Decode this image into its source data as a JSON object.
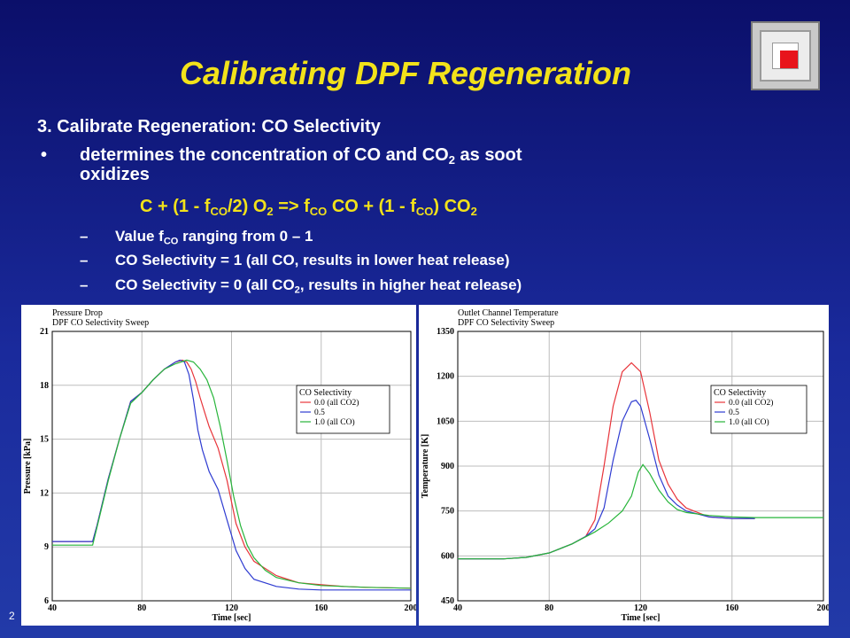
{
  "slide": {
    "title": "Calibrating DPF Regeneration",
    "line1": "3. Calibrate Regeneration: CO Selectivity",
    "bullet": "•",
    "bullet_text_a": "determines the concentration of CO and CO",
    "bullet_text_b": " as soot",
    "bullet_text_c": "oxidizes",
    "eq_parts": [
      "C + (1 - f",
      "CO",
      "/2) O",
      "2",
      " => f",
      "CO",
      " CO + (1 - f",
      "CO",
      ") CO",
      "2"
    ],
    "dash": "–",
    "sub1_a": "Value  f",
    "sub1_sub": "CO",
    "sub1_b": " ranging from 0 – 1",
    "sub2": "CO Selectivity = 1 (all CO, results in lower heat release)",
    "sub3_a": "CO Selectivity = 0 (all CO",
    "sub3_sub": "2",
    "sub3_b": ", results in higher heat release)",
    "page_number": "2",
    "logo": "square-logo-icon",
    "colors": {
      "title": "#f2e21a",
      "text": "#ffffff",
      "background": "#1a2a9c"
    }
  },
  "chart_data": [
    {
      "type": "line",
      "title": "Pressure Drop",
      "subtitle": "DPF CO Selectivity Sweep",
      "xlabel": "Time [sec]",
      "ylabel": "Pressure [kPa]",
      "xlim": [
        40,
        200
      ],
      "ylim": [
        6,
        21
      ],
      "xticks": [
        40,
        80,
        120,
        160,
        200
      ],
      "xtick_labels": [
        "40",
        "80",
        "120",
        "160",
        "200"
      ],
      "yticks": [
        6,
        9,
        12,
        15,
        18,
        21
      ],
      "ytick_labels": [
        "6",
        "9",
        "12",
        "15",
        "18",
        "21"
      ],
      "grid": true,
      "legend": {
        "title": "CO Selectivity",
        "position": "right"
      },
      "series": [
        {
          "name": "0.0 (all CO2)",
          "color": "#e8343a",
          "x": [
            40,
            58,
            60,
            65,
            70,
            75,
            80,
            85,
            90,
            95,
            98,
            100,
            102,
            104,
            106,
            108,
            110,
            114,
            118,
            122,
            126,
            130,
            140,
            150,
            160,
            170,
            180,
            200
          ],
          "y": [
            9.3,
            9.3,
            10.2,
            12.8,
            15.0,
            17.1,
            17.6,
            18.3,
            18.9,
            19.3,
            19.4,
            19.3,
            18.9,
            18.2,
            17.3,
            16.5,
            15.7,
            14.5,
            12.7,
            10.3,
            9.0,
            8.2,
            7.4,
            7.0,
            6.9,
            6.8,
            6.75,
            6.7
          ]
        },
        {
          "name": "0.5",
          "color": "#2e3bd1",
          "x": [
            40,
            58,
            60,
            65,
            70,
            75,
            80,
            85,
            90,
            95,
            97,
            99,
            101,
            103,
            105,
            107,
            110,
            114,
            118,
            122,
            126,
            130,
            140,
            150,
            160,
            170,
            180,
            200
          ],
          "y": [
            9.3,
            9.3,
            10.2,
            12.8,
            15.0,
            17.1,
            17.6,
            18.3,
            18.9,
            19.3,
            19.4,
            19.3,
            18.6,
            17.2,
            15.5,
            14.4,
            13.2,
            12.2,
            10.5,
            8.8,
            7.8,
            7.2,
            6.8,
            6.65,
            6.6,
            6.6,
            6.6,
            6.6
          ]
        },
        {
          "name": "1.0 (all CO)",
          "color": "#27b53a",
          "x": [
            40,
            58,
            60,
            65,
            70,
            75,
            80,
            85,
            90,
            95,
            100,
            103,
            106,
            109,
            112,
            115,
            118,
            121,
            124,
            127,
            130,
            135,
            140,
            150,
            160,
            170,
            180,
            200
          ],
          "y": [
            9.1,
            9.1,
            10.1,
            12.7,
            15.0,
            17.0,
            17.6,
            18.3,
            18.9,
            19.2,
            19.4,
            19.3,
            18.9,
            18.3,
            17.3,
            15.7,
            13.8,
            11.8,
            10.2,
            9.1,
            8.4,
            7.7,
            7.3,
            7.0,
            6.85,
            6.8,
            6.75,
            6.7
          ]
        }
      ]
    },
    {
      "type": "line",
      "title": "Outlet Channel Temperature",
      "subtitle": "DPF CO Selectivity Sweep",
      "xlabel": "Time [sec]",
      "ylabel": "Temperature [K]",
      "xlim": [
        40,
        200
      ],
      "ylim": [
        450,
        1350
      ],
      "xticks": [
        40,
        80,
        120,
        160,
        200
      ],
      "xtick_labels": [
        "40",
        "80",
        "120",
        "160",
        "200"
      ],
      "yticks": [
        450,
        600,
        750,
        900,
        1050,
        1200,
        1350
      ],
      "ytick_labels": [
        "450",
        "600",
        "750",
        "900",
        "1050",
        "1200",
        "1350"
      ],
      "grid": true,
      "legend": {
        "title": "CO Selectivity",
        "position": "right"
      },
      "series": [
        {
          "name": "0.0 (all CO2)",
          "color": "#e8343a",
          "x": [
            40,
            60,
            70,
            80,
            90,
            96,
            100,
            104,
            108,
            112,
            116,
            120,
            124,
            128,
            132,
            136,
            140,
            150,
            160,
            170
          ],
          "y": [
            590,
            590,
            595,
            610,
            640,
            665,
            720,
            900,
            1100,
            1215,
            1245,
            1215,
            1080,
            920,
            840,
            790,
            760,
            730,
            725,
            725
          ]
        },
        {
          "name": "0.5",
          "color": "#2e3bd1",
          "x": [
            40,
            60,
            70,
            80,
            90,
            96,
            100,
            104,
            108,
            112,
            116,
            118,
            120,
            124,
            128,
            132,
            136,
            140,
            150,
            160,
            170
          ],
          "y": [
            590,
            590,
            595,
            610,
            640,
            665,
            690,
            760,
            920,
            1050,
            1115,
            1120,
            1100,
            990,
            870,
            800,
            770,
            750,
            730,
            725,
            725
          ]
        },
        {
          "name": "1.0 (all CO)",
          "color": "#27b53a",
          "x": [
            40,
            60,
            70,
            80,
            90,
            100,
            106,
            112,
            116,
            119,
            121,
            124,
            128,
            132,
            136,
            140,
            150,
            160,
            170,
            180,
            200
          ],
          "y": [
            590,
            590,
            595,
            610,
            640,
            680,
            710,
            750,
            800,
            880,
            905,
            875,
            820,
            780,
            755,
            745,
            735,
            730,
            728,
            728,
            728
          ]
        }
      ]
    }
  ]
}
